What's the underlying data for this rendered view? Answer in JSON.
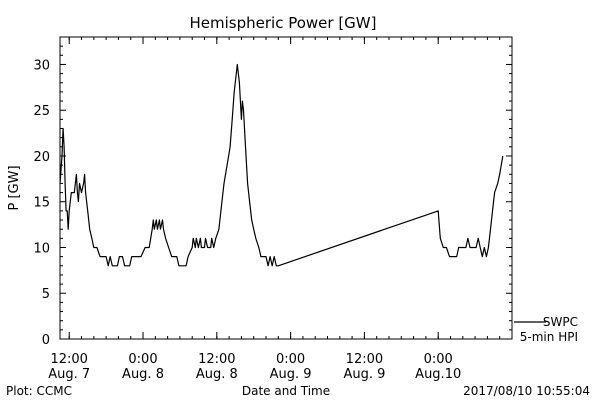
{
  "chart_data": {
    "type": "line",
    "title": "Hemispheric Power [GW]",
    "xlabel": "Date and Time",
    "ylabel": "P [GW]",
    "ylim": [
      0,
      33
    ],
    "yticks": [
      0,
      5,
      10,
      15,
      20,
      25,
      30
    ],
    "xlim": [
      "2017-08-07 10:30",
      "2017-08-10 12:00"
    ],
    "xticks": [
      {
        "time": "2017-08-07 12:00",
        "label1": "12:00",
        "label2": "Aug. 7"
      },
      {
        "time": "2017-08-08 00:00",
        "label1": "0:00",
        "label2": "Aug. 8"
      },
      {
        "time": "2017-08-08 12:00",
        "label1": "12:00",
        "label2": "Aug. 8"
      },
      {
        "time": "2017-08-09 00:00",
        "label1": "0:00",
        "label2": "Aug. 9"
      },
      {
        "time": "2017-08-09 12:00",
        "label1": "12:00",
        "label2": "Aug. 9"
      },
      {
        "time": "2017-08-10 00:00",
        "label1": "0:00",
        "label2": "Aug.10"
      }
    ],
    "legend": {
      "placement": "bottom-right",
      "entries": [
        "SWPC",
        "5-min HPI"
      ]
    },
    "series": [
      {
        "name": "SWPC",
        "color": "#000000",
        "points": [
          [
            "2017-08-07 10:30",
            17
          ],
          [
            "2017-08-07 10:50",
            20
          ],
          [
            "2017-08-07 11:00",
            23
          ],
          [
            "2017-08-07 11:10",
            21
          ],
          [
            "2017-08-07 11:20",
            17
          ],
          [
            "2017-08-07 11:30",
            14
          ],
          [
            "2017-08-07 11:40",
            14
          ],
          [
            "2017-08-07 11:50",
            12
          ],
          [
            "2017-08-07 12:00",
            14
          ],
          [
            "2017-08-07 12:20",
            16
          ],
          [
            "2017-08-07 12:50",
            16
          ],
          [
            "2017-08-07 13:10",
            18
          ],
          [
            "2017-08-07 13:20",
            16
          ],
          [
            "2017-08-07 13:30",
            15
          ],
          [
            "2017-08-07 13:40",
            17
          ],
          [
            "2017-08-07 14:00",
            16
          ],
          [
            "2017-08-07 14:20",
            17
          ],
          [
            "2017-08-07 14:30",
            18
          ],
          [
            "2017-08-07 14:40",
            16
          ],
          [
            "2017-08-07 15:00",
            14
          ],
          [
            "2017-08-07 15:20",
            12
          ],
          [
            "2017-08-07 15:40",
            11
          ],
          [
            "2017-08-07 16:00",
            10
          ],
          [
            "2017-08-07 16:30",
            10
          ],
          [
            "2017-08-07 17:00",
            9
          ],
          [
            "2017-08-07 18:00",
            9
          ],
          [
            "2017-08-07 18:20",
            8
          ],
          [
            "2017-08-07 18:40",
            9
          ],
          [
            "2017-08-07 19:00",
            8
          ],
          [
            "2017-08-07 19:50",
            8
          ],
          [
            "2017-08-07 20:10",
            9
          ],
          [
            "2017-08-07 20:40",
            9
          ],
          [
            "2017-08-07 21:00",
            8
          ],
          [
            "2017-08-07 21:50",
            8
          ],
          [
            "2017-08-07 22:10",
            9
          ],
          [
            "2017-08-07 23:40",
            9
          ],
          [
            "2017-08-08 00:20",
            10
          ],
          [
            "2017-08-08 01:00",
            10
          ],
          [
            "2017-08-08 01:30",
            12
          ],
          [
            "2017-08-08 01:40",
            13
          ],
          [
            "2017-08-08 01:50",
            12
          ],
          [
            "2017-08-08 02:10",
            13
          ],
          [
            "2017-08-08 02:20",
            12
          ],
          [
            "2017-08-08 02:40",
            13
          ],
          [
            "2017-08-08 02:50",
            12
          ],
          [
            "2017-08-08 03:10",
            13
          ],
          [
            "2017-08-08 03:20",
            12
          ],
          [
            "2017-08-08 03:40",
            11
          ],
          [
            "2017-08-08 04:10",
            10
          ],
          [
            "2017-08-08 04:40",
            9
          ],
          [
            "2017-08-08 05:30",
            9
          ],
          [
            "2017-08-08 05:50",
            8
          ],
          [
            "2017-08-08 07:00",
            8
          ],
          [
            "2017-08-08 07:20",
            9
          ],
          [
            "2017-08-08 08:00",
            10
          ],
          [
            "2017-08-08 08:10",
            11
          ],
          [
            "2017-08-08 08:30",
            10
          ],
          [
            "2017-08-08 08:40",
            11
          ],
          [
            "2017-08-08 09:00",
            10
          ],
          [
            "2017-08-08 09:20",
            11
          ],
          [
            "2017-08-08 09:30",
            10
          ],
          [
            "2017-08-08 10:00",
            10
          ],
          [
            "2017-08-08 10:10",
            11
          ],
          [
            "2017-08-08 10:30",
            10
          ],
          [
            "2017-08-08 11:00",
            10
          ],
          [
            "2017-08-08 11:10",
            11
          ],
          [
            "2017-08-08 11:30",
            10
          ],
          [
            "2017-08-08 11:50",
            11
          ],
          [
            "2017-08-08 12:20",
            12
          ],
          [
            "2017-08-08 12:40",
            14
          ],
          [
            "2017-08-08 13:10",
            17
          ],
          [
            "2017-08-08 13:40",
            19
          ],
          [
            "2017-08-08 14:10",
            21
          ],
          [
            "2017-08-08 14:30",
            24
          ],
          [
            "2017-08-08 14:50",
            27
          ],
          [
            "2017-08-08 15:10",
            29
          ],
          [
            "2017-08-08 15:20",
            30
          ],
          [
            "2017-08-08 15:40",
            28
          ],
          [
            "2017-08-08 16:00",
            24
          ],
          [
            "2017-08-08 16:10",
            26
          ],
          [
            "2017-08-08 16:20",
            25
          ],
          [
            "2017-08-08 16:40",
            21
          ],
          [
            "2017-08-08 17:00",
            17
          ],
          [
            "2017-08-08 17:20",
            15
          ],
          [
            "2017-08-08 17:40",
            13
          ],
          [
            "2017-08-08 18:00",
            12
          ],
          [
            "2017-08-08 18:20",
            11
          ],
          [
            "2017-08-08 18:50",
            10
          ],
          [
            "2017-08-08 19:10",
            9
          ],
          [
            "2017-08-08 19:30",
            9
          ],
          [
            "2017-08-08 20:00",
            9
          ],
          [
            "2017-08-08 20:20",
            8
          ],
          [
            "2017-08-08 20:40",
            9
          ],
          [
            "2017-08-08 21:00",
            8
          ],
          [
            "2017-08-08 21:20",
            9
          ],
          [
            "2017-08-08 21:40",
            8
          ],
          [
            "2017-08-08 22:00",
            8
          ],
          [
            "2017-08-10 00:00",
            14
          ],
          [
            "2017-08-10 00:20",
            11
          ],
          [
            "2017-08-10 00:50",
            10
          ],
          [
            "2017-08-10 01:20",
            10
          ],
          [
            "2017-08-10 01:50",
            9
          ],
          [
            "2017-08-10 03:00",
            9
          ],
          [
            "2017-08-10 03:20",
            10
          ],
          [
            "2017-08-10 04:30",
            10
          ],
          [
            "2017-08-10 04:50",
            11
          ],
          [
            "2017-08-10 05:10",
            10
          ],
          [
            "2017-08-10 06:10",
            10
          ],
          [
            "2017-08-10 06:30",
            11
          ],
          [
            "2017-08-10 06:50",
            10
          ],
          [
            "2017-08-10 07:10",
            9
          ],
          [
            "2017-08-10 07:30",
            10
          ],
          [
            "2017-08-10 07:50",
            9
          ],
          [
            "2017-08-10 08:10",
            10
          ],
          [
            "2017-08-10 08:30",
            12
          ],
          [
            "2017-08-10 08:50",
            14
          ],
          [
            "2017-08-10 09:10",
            16
          ],
          [
            "2017-08-10 09:40",
            17
          ],
          [
            "2017-08-10 10:00",
            18
          ],
          [
            "2017-08-10 10:30",
            20
          ]
        ]
      },
      {
        "name": "5-min HPI",
        "color": "#000000",
        "points": []
      }
    ]
  },
  "footer": {
    "source": "Plot: CCMC",
    "xlabel": "Date and Time",
    "timestamp": "2017/08/10 10:55:04"
  }
}
